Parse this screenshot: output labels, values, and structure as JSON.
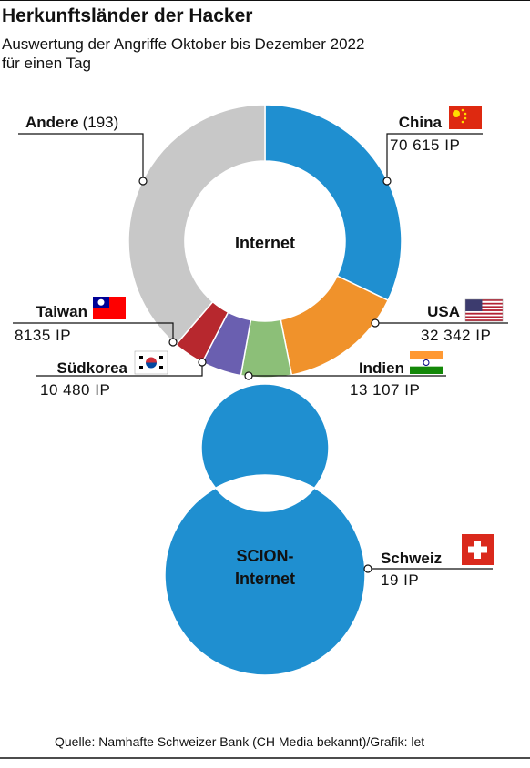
{
  "title": "Herkunftsländer der Hacker",
  "subtitle": [
    "Auswertung der Angriffe Oktober bis Dezember 2022",
    "für einen Tag"
  ],
  "chart_data": [
    {
      "type": "donut",
      "center_label": [
        "Internet"
      ],
      "categories": [
        "China",
        "USA",
        "Indien",
        "Südkorea",
        "Taiwan",
        "Andere"
      ],
      "category_notes": [
        null,
        null,
        null,
        null,
        null,
        "(193)"
      ],
      "values": [
        70615,
        32342,
        13107,
        10480,
        8135,
        85000
      ],
      "value_labels": [
        "70 615 IP",
        "32 342 IP",
        "13 107 IP",
        "10 480 IP",
        "8135 IP",
        null
      ],
      "colors": [
        "#1f8fd0",
        "#f0922b",
        "#8cbf78",
        "#6a5fb0",
        "#b7282e",
        "#c8c8c8"
      ]
    },
    {
      "type": "donut",
      "center_label": [
        "SCION-",
        "Internet"
      ],
      "categories": [
        "Schweiz"
      ],
      "category_notes": [
        null
      ],
      "values": [
        19
      ],
      "value_labels": [
        "19 IP"
      ],
      "colors": [
        "#1f8fd0"
      ]
    }
  ],
  "source": "Quelle: Namhafte Schweizer Bank (CH Media bekannt)/Grafik: let"
}
